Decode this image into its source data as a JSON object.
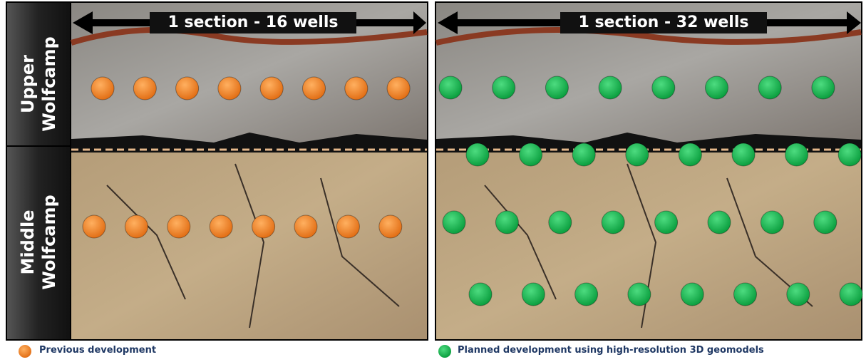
{
  "left_panel": {
    "header": "1 section - 16 wells",
    "zones": [
      "Upper Wolfcamp",
      "Middle Wolfcamp"
    ]
  },
  "right_panel": {
    "header": "1 section - 32 wells"
  },
  "legend": [
    "Previous development",
    "Planned development using high-resolution 3D geomodels"
  ]
}
